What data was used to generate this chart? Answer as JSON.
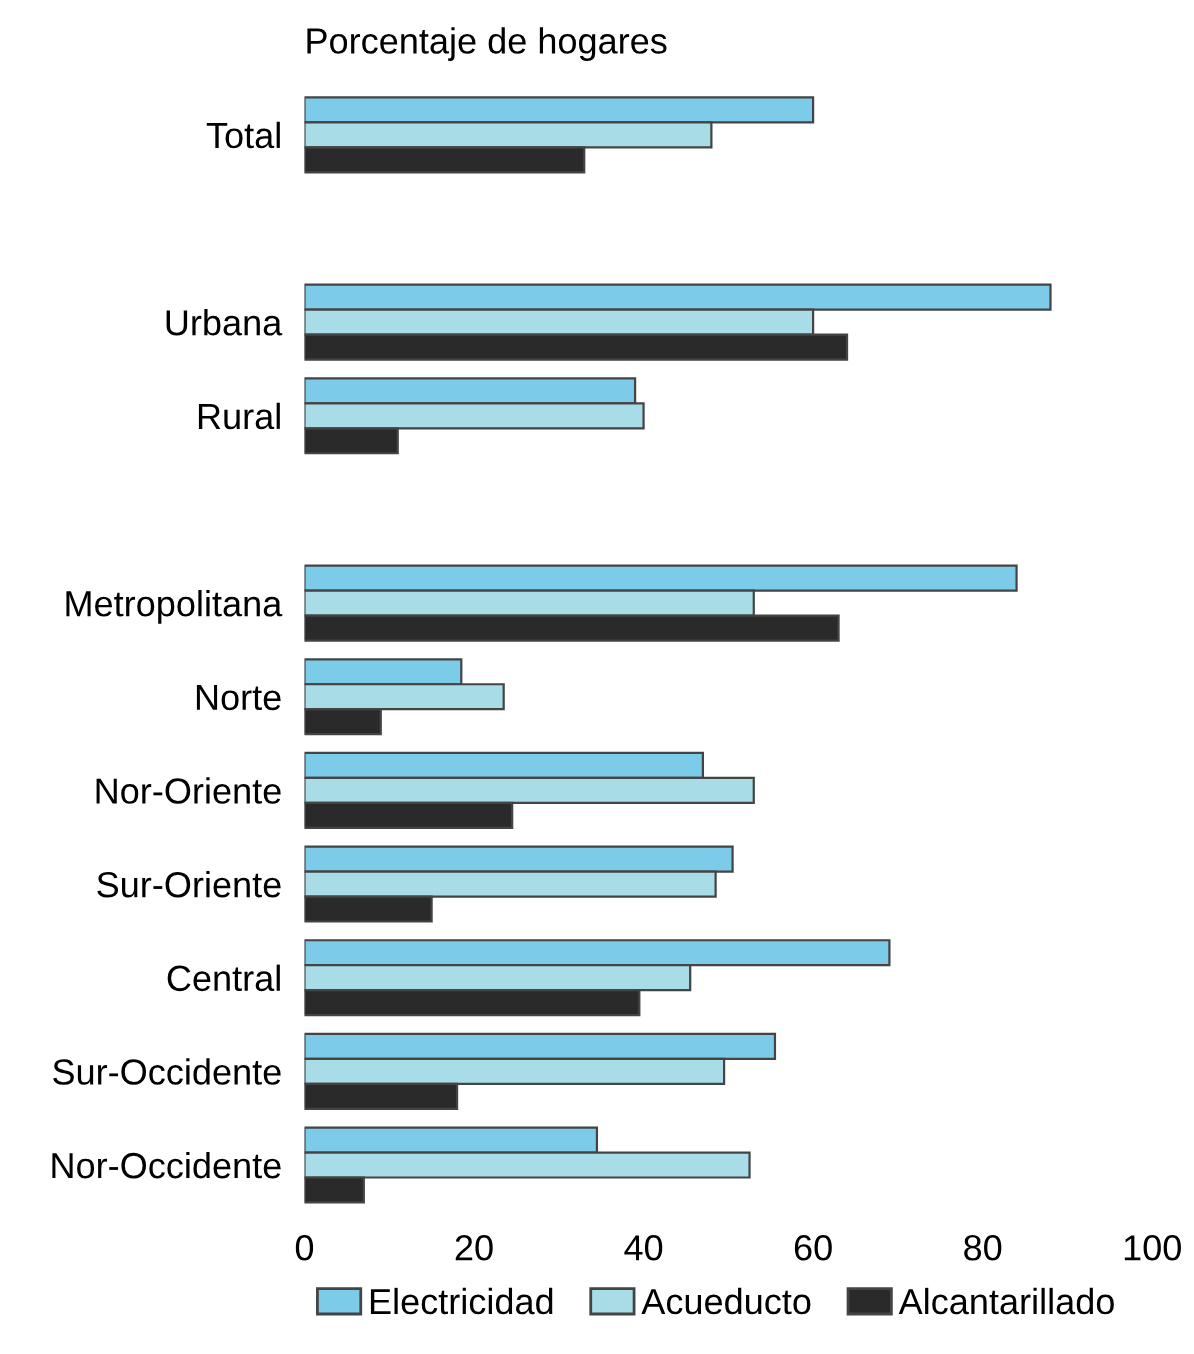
{
  "chart_data": {
    "type": "bar",
    "orientation": "horizontal",
    "title": "Porcentaje de hogares",
    "categories": [
      "Total",
      null,
      "Urbana",
      "Rural",
      null,
      "Metropolitana",
      "Norte",
      "Nor-Oriente",
      "Sur-Oriente",
      "Central",
      "Sur-Occidente",
      "Nor-Occidente"
    ],
    "series": [
      {
        "name": "Electricidad",
        "color": "#7ccbe8",
        "values": [
          60,
          null,
          88,
          39,
          null,
          84,
          18.5,
          47,
          50.5,
          69,
          55.5,
          34.5
        ]
      },
      {
        "name": "Acueducto",
        "color": "#a8dde8",
        "values": [
          48,
          null,
          60,
          40,
          null,
          53,
          23.5,
          53,
          48.5,
          45.5,
          49.5,
          52.5
        ]
      },
      {
        "name": "Alcantarillado",
        "color": "#2a2a2a",
        "values": [
          33,
          null,
          64,
          11,
          null,
          63,
          9,
          24.5,
          15,
          39.5,
          18,
          7
        ]
      }
    ],
    "xlim": [
      0,
      100
    ],
    "xticks": [
      0,
      20,
      40,
      60,
      80,
      100
    ],
    "grid": false,
    "legend": "bottom"
  }
}
